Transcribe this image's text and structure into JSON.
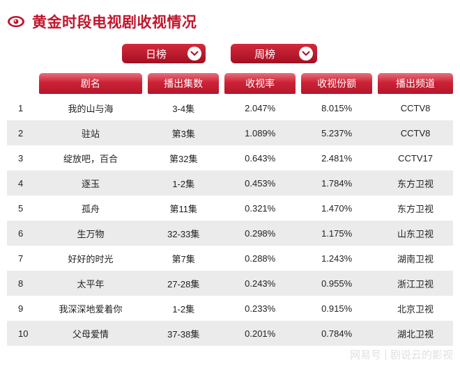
{
  "header": {
    "title": "黄金时段电视剧收视情况",
    "icon": "eye-icon",
    "accent_color": "#c0152d"
  },
  "toggles": {
    "daily_label": "日榜",
    "weekly_label": "周榜"
  },
  "table": {
    "columns": [
      "剧名",
      "播出集数",
      "收视率",
      "收视份额",
      "播出频道"
    ],
    "rows": [
      {
        "rank": "1",
        "name": "我的山与海",
        "episodes": "3-4集",
        "rating": "2.047%",
        "share": "8.015%",
        "channel": "CCTV8"
      },
      {
        "rank": "2",
        "name": "驻站",
        "episodes": "第3集",
        "rating": "1.089%",
        "share": "5.237%",
        "channel": "CCTV8"
      },
      {
        "rank": "3",
        "name": "绽放吧，百合",
        "episodes": "第32集",
        "rating": "0.643%",
        "share": "2.481%",
        "channel": "CCTV17"
      },
      {
        "rank": "4",
        "name": "逐玉",
        "episodes": "1-2集",
        "rating": "0.453%",
        "share": "1.784%",
        "channel": "东方卫视"
      },
      {
        "rank": "5",
        "name": "孤舟",
        "episodes": "第11集",
        "rating": "0.321%",
        "share": "1.470%",
        "channel": "东方卫视"
      },
      {
        "rank": "6",
        "name": "生万物",
        "episodes": "32-33集",
        "rating": "0.298%",
        "share": "1.175%",
        "channel": "山东卫视"
      },
      {
        "rank": "7",
        "name": "好好的时光",
        "episodes": "第7集",
        "rating": "0.288%",
        "share": "1.243%",
        "channel": "湖南卫视"
      },
      {
        "rank": "8",
        "name": "太平年",
        "episodes": "27-28集",
        "rating": "0.243%",
        "share": "0.955%",
        "channel": "浙江卫视"
      },
      {
        "rank": "9",
        "name": "我深深地爱着你",
        "episodes": "1-2集",
        "rating": "0.233%",
        "share": "0.915%",
        "channel": "北京卫视"
      },
      {
        "rank": "10",
        "name": "父母爱情",
        "episodes": "37-38集",
        "rating": "0.201%",
        "share": "0.784%",
        "channel": "湖北卫视"
      }
    ]
  },
  "watermark": {
    "left": "网易号",
    "right": "剧说云的影视"
  }
}
